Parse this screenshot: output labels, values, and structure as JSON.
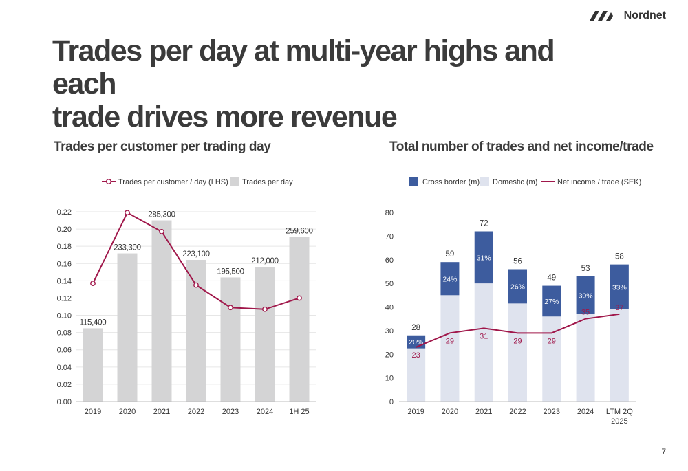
{
  "brand": {
    "name": "Nordnet"
  },
  "page": {
    "title_line1": "Trades per day at multi-year highs and each",
    "title_line2": "trade drives more revenue",
    "number": "7"
  },
  "colors": {
    "bar_grey": "#d4d4d5",
    "line_red": "#a0174a",
    "cross_border": "#3d5c9e",
    "domestic": "#dfe3ee",
    "grid": "#e6e6e6",
    "text": "#333333"
  },
  "left_chart": {
    "subtitle": "Trades per customer per trading day",
    "legend": {
      "line": "Trades per customer / day (LHS)",
      "bar": "Trades per day"
    }
  },
  "right_chart": {
    "subtitle": "Total number of trades and net income/trade",
    "legend": {
      "cross": "Cross border (m)",
      "domestic": "Domestic (m)",
      "line": "Net income / trade (SEK)"
    }
  },
  "chart_data": [
    {
      "type": "bar",
      "title": "Trades per customer per trading day",
      "categories": [
        "2019",
        "2020",
        "2021",
        "2022",
        "2023",
        "2024",
        "1H 25"
      ],
      "series": [
        {
          "name": "Trades per day",
          "type": "bar",
          "values": [
            115400,
            233300,
            285300,
            223100,
            195500,
            212000,
            259600
          ],
          "labels": [
            "115,400",
            "233,300",
            "285,300",
            "223,100",
            "195,500",
            "212,000",
            "259,600"
          ]
        },
        {
          "name": "Trades per customer / day (LHS)",
          "type": "line",
          "values": [
            0.137,
            0.219,
            0.197,
            0.135,
            0.109,
            0.107,
            0.12
          ]
        }
      ],
      "ylim": [
        0,
        0.22
      ],
      "yticks": [
        "0.00",
        "0.02",
        "0.04",
        "0.06",
        "0.08",
        "0.10",
        "0.12",
        "0.14",
        "0.16",
        "0.18",
        "0.20",
        "0.22"
      ],
      "grid": true,
      "legend": "top-center"
    },
    {
      "type": "bar",
      "stacked": true,
      "title": "Total number of trades and net income/trade",
      "categories": [
        "2019",
        "2020",
        "2021",
        "2022",
        "2023",
        "2024",
        "LTM 2Q 2025"
      ],
      "totals": [
        28,
        59,
        72,
        56,
        49,
        53,
        58
      ],
      "series": [
        {
          "name": "Domestic (m)",
          "values": [
            22.5,
            45,
            50,
            41.5,
            36,
            37,
            39
          ]
        },
        {
          "name": "Cross border (m)",
          "values": [
            5.5,
            14,
            22,
            14.5,
            13,
            16,
            19
          ],
          "share_labels": [
            "20%",
            "24%",
            "31%",
            "26%",
            "27%",
            "30%",
            "33%"
          ]
        },
        {
          "name": "Net income / trade (SEK)",
          "type": "line",
          "values": [
            23,
            29,
            31,
            29,
            29,
            35,
            37
          ]
        }
      ],
      "ylim": [
        0,
        80
      ],
      "yticks": [
        "0",
        "10",
        "20",
        "30",
        "40",
        "50",
        "60",
        "70",
        "80"
      ],
      "grid": false,
      "legend": "top-left"
    }
  ]
}
